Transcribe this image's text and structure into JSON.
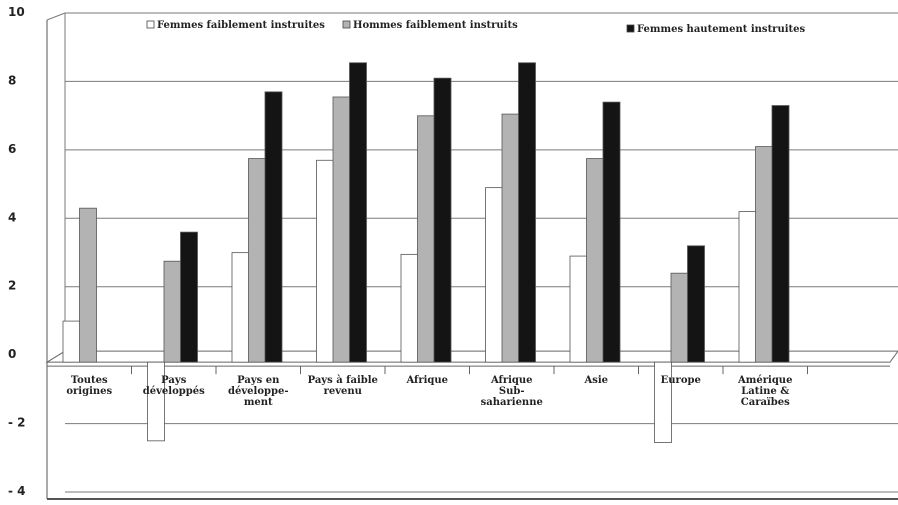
{
  "chart_data": {
    "type": "bar",
    "title": "",
    "xlabel": "",
    "ylabel": "",
    "ylim": [
      -4,
      10
    ],
    "yticks": [
      "10",
      "8",
      "6",
      "4",
      "2",
      "0",
      "- 2",
      "- 4"
    ],
    "ytick_values": [
      10,
      8,
      6,
      4,
      2,
      0,
      -2,
      -4
    ],
    "grid": true,
    "legend_position": "top",
    "categories": [
      [
        "Toutes",
        "origines"
      ],
      [
        "Pays",
        "développés"
      ],
      [
        "Pays en",
        "développe-",
        "ment"
      ],
      [
        "Pays à faible",
        "revenu"
      ],
      [
        "Afrique"
      ],
      [
        "Afrique",
        "Sub-",
        "saharienne"
      ],
      [
        "Asie"
      ],
      [
        "Europe"
      ],
      [
        "Amérique",
        "Latine &",
        "Caraïbes"
      ]
    ],
    "series": [
      {
        "name": "Femmes faiblement instruites",
        "color": "#ffffff",
        "values": [
          1.2,
          -2.3,
          3.2,
          5.9,
          3.15,
          5.1,
          3.1,
          -2.35,
          4.4
        ]
      },
      {
        "name": "Hommes faiblement instruits",
        "color": "#b3b3b3",
        "values": [
          4.5,
          2.95,
          5.95,
          7.75,
          7.2,
          7.25,
          5.95,
          2.6,
          6.3
        ]
      },
      {
        "name": "Femmes hautement instruites",
        "color": "#141414",
        "values": [
          null,
          3.8,
          7.9,
          8.75,
          8.3,
          8.75,
          7.6,
          3.4,
          7.5
        ]
      }
    ]
  }
}
